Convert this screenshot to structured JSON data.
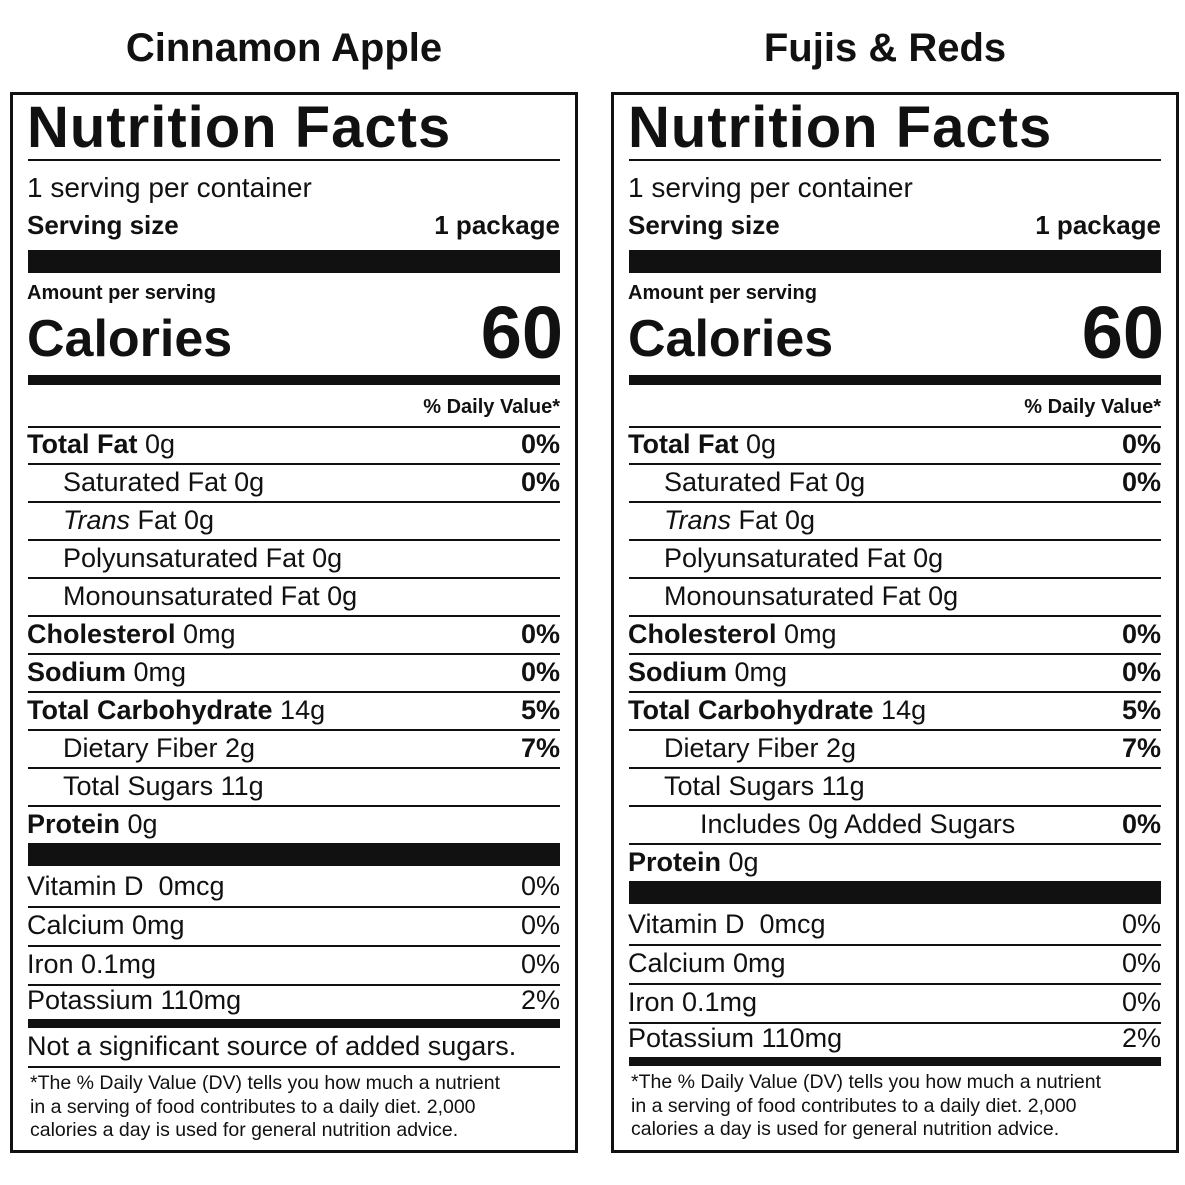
{
  "labels": [
    {
      "product": "Cinnamon Apple",
      "title": "Nutrition Facts",
      "servings": "1 serving per container",
      "serving_size_label": "Serving size",
      "serving_size": "1 package",
      "amount_per_serving": "Amount per serving",
      "calories_label": "Calories",
      "calories": 60,
      "dv_header": "% Daily Value*",
      "nutrients": [
        {
          "name": "Total Fat",
          "amount": "0g",
          "dv": "0%",
          "sub": [
            {
              "name": "Saturated Fat 0g",
              "dv": "0%"
            },
            {
              "italic": "Trans",
              "name": "Fat 0g"
            },
            {
              "name": "Polyunsaturated Fat 0g"
            },
            {
              "name": "Monounsaturated Fat 0g"
            }
          ]
        },
        {
          "name": "Cholesterol",
          "amount": "0mg",
          "dv": "0%"
        },
        {
          "name": "Sodium",
          "amount": "0mg",
          "dv": "0%"
        },
        {
          "name": "Total Carbohydrate",
          "amount": "14g",
          "dv": "5%",
          "sub": [
            {
              "name": "Dietary Fiber 2g",
              "dv": "7%"
            },
            {
              "name": "Total Sugars 11g"
            }
          ]
        },
        {
          "name": "Protein",
          "amount": "0g"
        }
      ],
      "vitamins": [
        {
          "name": "Vitamin D  0mcg",
          "dv": "0%"
        },
        {
          "name": "Calcium 0mg",
          "dv": "0%"
        },
        {
          "name": "Iron 0.1mg",
          "dv": "0%"
        },
        {
          "name": "Potassium 110mg",
          "dv": "2%"
        }
      ],
      "note": "Not a significant source of added sugars.",
      "footnote": [
        "*The % Daily Value (DV) tells you how much a nutrient",
        "in a serving of food contributes to a daily diet. 2,000",
        "calories a day is used for general nutrition advice."
      ]
    },
    {
      "product": "Fujis & Reds",
      "title": "Nutrition Facts",
      "servings": "1 serving per container",
      "serving_size_label": "Serving size",
      "serving_size": "1 package",
      "amount_per_serving": "Amount per serving",
      "calories_label": "Calories",
      "calories": 60,
      "dv_header": "% Daily Value*",
      "nutrients": [
        {
          "name": "Total Fat",
          "amount": "0g",
          "dv": "0%",
          "sub": [
            {
              "name": "Saturated Fat 0g",
              "dv": "0%"
            },
            {
              "italic": "Trans",
              "name": "Fat 0g"
            },
            {
              "name": "Polyunsaturated Fat 0g"
            },
            {
              "name": "Monounsaturated Fat 0g"
            }
          ]
        },
        {
          "name": "Cholesterol",
          "amount": "0mg",
          "dv": "0%"
        },
        {
          "name": "Sodium",
          "amount": "0mg",
          "dv": "0%"
        },
        {
          "name": "Total Carbohydrate",
          "amount": "14g",
          "dv": "5%",
          "sub": [
            {
              "name": "Dietary Fiber 2g",
              "dv": "7%"
            },
            {
              "name": "Total Sugars 11g",
              "sub": [
                {
                  "name": "Includes 0g Added Sugars",
                  "dv": "0%"
                }
              ]
            }
          ]
        },
        {
          "name": "Protein",
          "amount": "0g"
        }
      ],
      "vitamins": [
        {
          "name": "Vitamin D  0mcg",
          "dv": "0%"
        },
        {
          "name": "Calcium 0mg",
          "dv": "0%"
        },
        {
          "name": "Iron 0.1mg",
          "dv": "0%"
        },
        {
          "name": "Potassium 110mg",
          "dv": "2%"
        }
      ],
      "footnote": [
        "*The % Daily Value (DV) tells you how much a nutrient",
        "in a serving of food contributes to a daily diet. 2,000",
        "calories a day is used for general nutrition advice."
      ]
    }
  ]
}
